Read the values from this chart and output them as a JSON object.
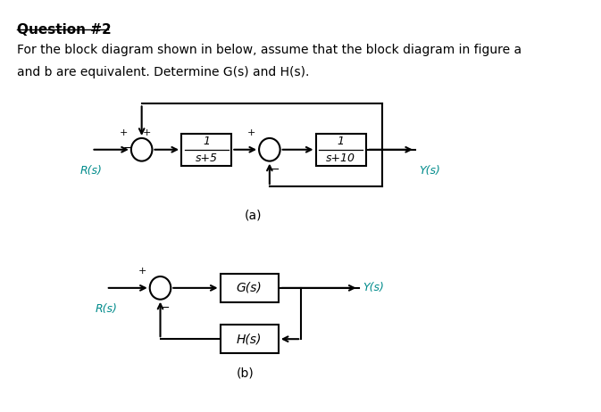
{
  "title": "Question #2",
  "body_text_line1": "For the block diagram shown in below, assume that the block diagram in figure a",
  "body_text_line2": "and b are equivalent. Determine G(s) and H(s).",
  "fig_label_a": "(a)",
  "fig_label_b": "(b)",
  "text_color": "#000000",
  "teal_color": "#008B8B",
  "background_color": "#ffffff",
  "diagram_a": {
    "Rs_label": "R(s)",
    "Ys_label": "Y(s)",
    "block1_label_num": "1",
    "block1_label_den": "s+5",
    "block2_label_num": "1",
    "block2_label_den": "s+10"
  },
  "diagram_b": {
    "Rs_label": "R(s)",
    "Ys_label": "Y(s)",
    "Gs_label": "G(s)",
    "Hs_label": "H(s)"
  }
}
